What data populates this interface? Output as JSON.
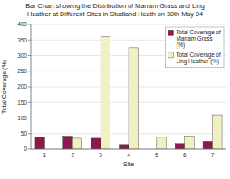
{
  "chart_data": {
    "type": "bar",
    "title": "Bar Chart showing the Distribution of Marram Grass and Ling\nHeather at Different Sites in Studland Heath on 30th May 04",
    "x_label": "Site",
    "y_label": "Total Coverage (%)",
    "categories": [
      "1",
      "2",
      "3",
      "4",
      "5",
      "6",
      "7"
    ],
    "series": [
      {
        "name": "Total Coverage of\nMarram Grass\n(%)",
        "color": "#8B1A4A",
        "values": [
          40,
          42,
          35,
          15,
          0,
          18,
          25
        ]
      },
      {
        "name": "Total Coverage of\nLing Heather (%)",
        "color": "#F0F0C0",
        "values": [
          0,
          35,
          360,
          325,
          38,
          42,
          110
        ]
      }
    ],
    "ylim": [
      0,
      400
    ],
    "yticks": [
      0,
      50,
      100,
      150,
      200,
      250,
      300,
      350,
      400
    ],
    "grid": true,
    "legend": "upper right"
  }
}
